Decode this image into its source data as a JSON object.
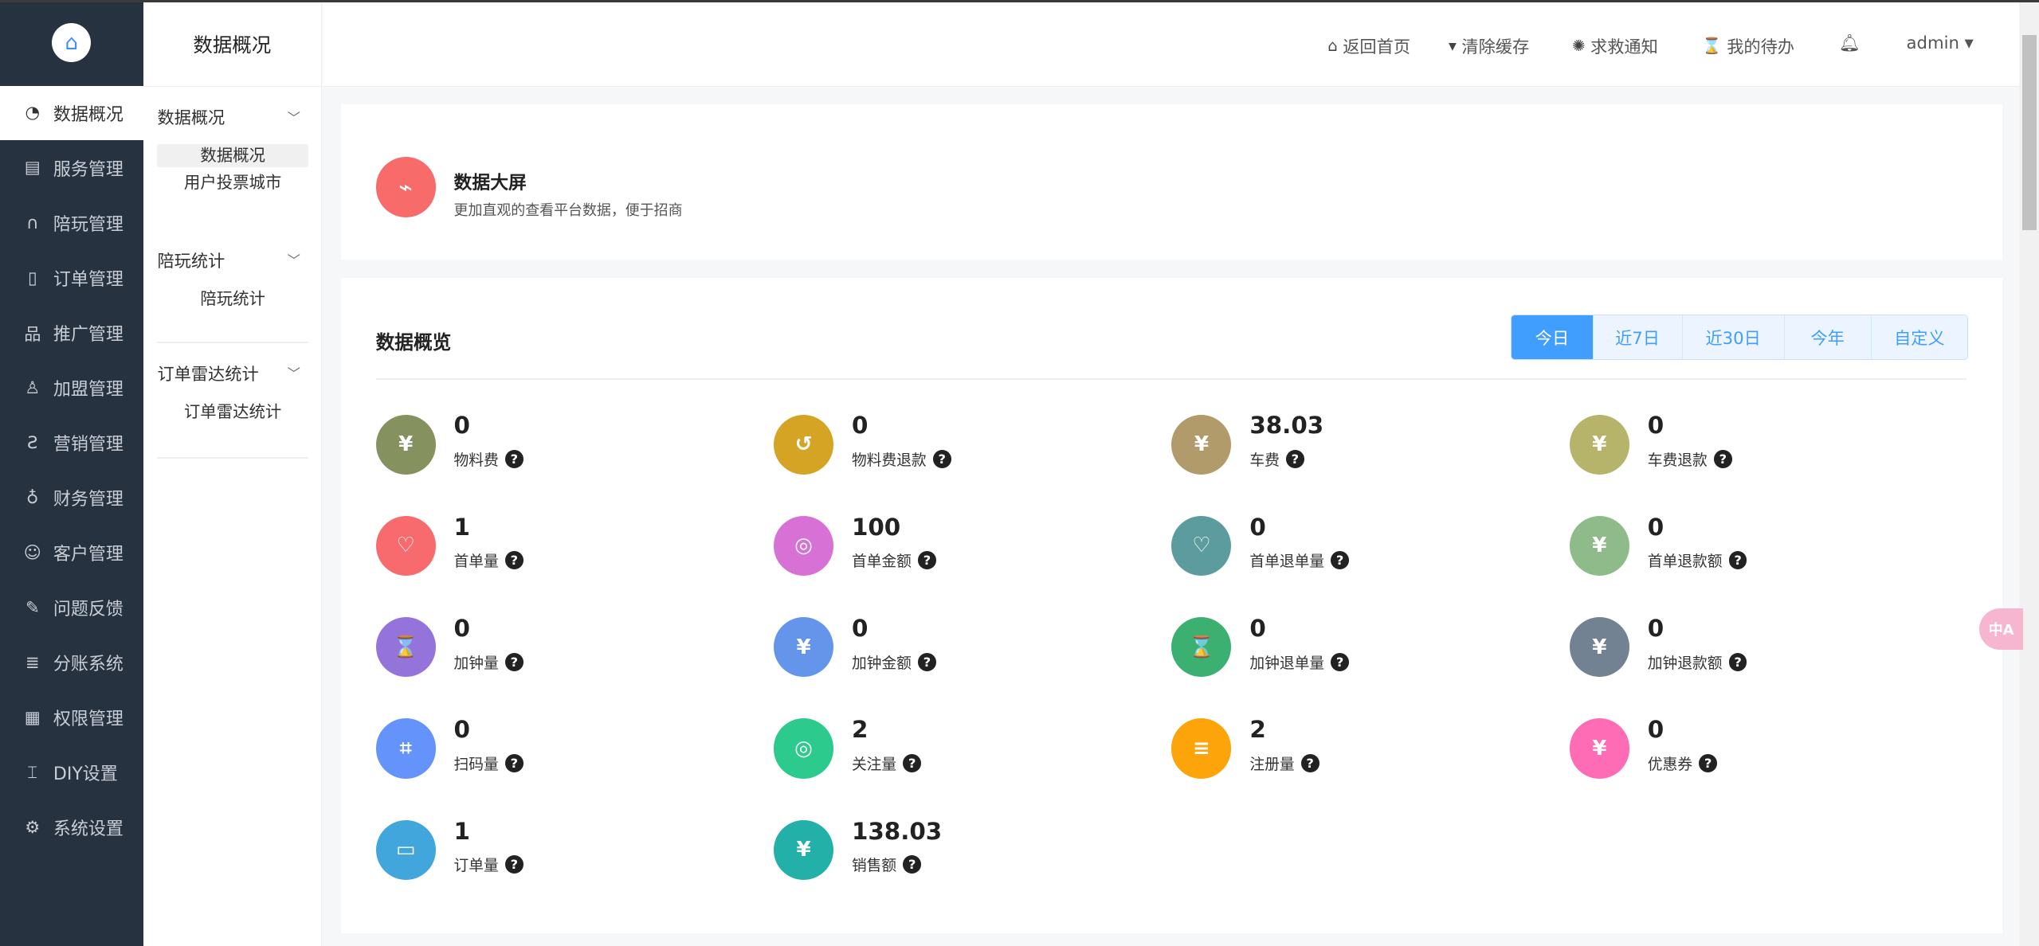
{
  "sidebar": {
    "logo_icon": "home-icon",
    "items": [
      {
        "label": "数据概况",
        "icon": "pie-chart-icon",
        "glyph": "◔",
        "active": true
      },
      {
        "label": "服务管理",
        "icon": "calendar-clock-icon",
        "glyph": "▤"
      },
      {
        "label": "陪玩管理",
        "icon": "headset-icon",
        "glyph": "∩"
      },
      {
        "label": "订单管理",
        "icon": "clipboard-icon",
        "glyph": "▯"
      },
      {
        "label": "推广管理",
        "icon": "hierarchy-icon",
        "glyph": "品"
      },
      {
        "label": "加盟管理",
        "icon": "users-icon",
        "glyph": "♙"
      },
      {
        "label": "营销管理",
        "icon": "marketing-icon",
        "glyph": "Ƨ"
      },
      {
        "label": "财务管理",
        "icon": "money-bag-icon",
        "glyph": "♁"
      },
      {
        "label": "客户管理",
        "icon": "customer-icon",
        "glyph": "☺"
      },
      {
        "label": "问题反馈",
        "icon": "feedback-icon",
        "glyph": "✎"
      },
      {
        "label": "分账系统",
        "icon": "ledger-icon",
        "glyph": "≣"
      },
      {
        "label": "权限管理",
        "icon": "permission-icon",
        "glyph": "▦"
      },
      {
        "label": "DIY设置",
        "icon": "diy-icon",
        "glyph": "⌶"
      },
      {
        "label": "系统设置",
        "icon": "gear-icon",
        "glyph": "⚙"
      }
    ]
  },
  "subnav": {
    "title": "数据概况",
    "groups": [
      {
        "label": "数据概况",
        "items": [
          "数据概况",
          "用户投票城市"
        ],
        "selected": 0
      },
      {
        "label": "陪玩统计",
        "items": [
          "陪玩统计"
        ]
      },
      {
        "label": "订单雷达统计",
        "items": [
          "订单雷达统计"
        ]
      }
    ]
  },
  "header": {
    "items": [
      {
        "label": "返回首页",
        "icon": "home-icon",
        "glyph": "⌂"
      },
      {
        "label": "清除缓存",
        "icon": "brush-icon",
        "glyph": "▾"
      },
      {
        "label": "求救通知",
        "icon": "alarm-icon",
        "glyph": "✺"
      },
      {
        "label": "我的待办",
        "icon": "hourglass-icon",
        "glyph": "⌛"
      }
    ],
    "bell_icon": "bell-icon",
    "user": "admin"
  },
  "banner": {
    "title": "数据大屏",
    "desc": "更加直观的查看平台数据，便于招商",
    "icon": "monitor-chart-icon"
  },
  "overview": {
    "title": "数据概览",
    "tabs": [
      "今日",
      "近7日",
      "近30日",
      "今年",
      "自定义"
    ],
    "active_tab": 0,
    "stats": [
      {
        "value": "0",
        "label": "物料费",
        "color": "#85925f",
        "icon": "price-tag-icon",
        "glyph": "¥"
      },
      {
        "value": "0",
        "label": "物料费退款",
        "color": "#d6a424",
        "icon": "refund-box-icon",
        "glyph": "↺"
      },
      {
        "value": "38.03",
        "label": "车费",
        "color": "#b29b6a",
        "icon": "car-icon",
        "glyph": "¥"
      },
      {
        "value": "0",
        "label": "车费退款",
        "color": "#b5b46a",
        "icon": "yen-refund-icon",
        "glyph": "¥"
      },
      {
        "value": "1",
        "label": "首单量",
        "color": "#f76b6e",
        "icon": "heart-hand-icon",
        "glyph": "♡"
      },
      {
        "value": "100",
        "label": "首单金额",
        "color": "#d771d6",
        "icon": "money-bag-icon",
        "glyph": "◎"
      },
      {
        "value": "0",
        "label": "首单退单量",
        "color": "#5c9c9e",
        "icon": "heart-hand-icon",
        "glyph": "♡"
      },
      {
        "value": "0",
        "label": "首单退款额",
        "color": "#8fbb8b",
        "icon": "yen-refund-icon",
        "glyph": "¥"
      },
      {
        "value": "0",
        "label": "加钟量",
        "color": "#9473db",
        "icon": "hourglass-icon",
        "glyph": "⌛"
      },
      {
        "value": "0",
        "label": "加钟金额",
        "color": "#6495ea",
        "icon": "wallet-clock-icon",
        "glyph": "¥"
      },
      {
        "value": "0",
        "label": "加钟退单量",
        "color": "#3bb071",
        "icon": "hourglass-icon",
        "glyph": "⌛"
      },
      {
        "value": "0",
        "label": "加钟退款额",
        "color": "#738293",
        "icon": "yen-refund-icon",
        "glyph": "¥"
      },
      {
        "value": "0",
        "label": "扫码量",
        "color": "#6393fb",
        "icon": "scan-icon",
        "glyph": "⌗"
      },
      {
        "value": "2",
        "label": "关注量",
        "color": "#2ccb8d",
        "icon": "target-icon",
        "glyph": "◎"
      },
      {
        "value": "2",
        "label": "注册量",
        "color": "#fca40a",
        "icon": "register-icon",
        "glyph": "≡"
      },
      {
        "value": "0",
        "label": "优惠券",
        "color": "#fe6cb5",
        "icon": "coupon-icon",
        "glyph": "¥"
      },
      {
        "value": "1",
        "label": "订单量",
        "color": "#40a6dc",
        "icon": "order-icon",
        "glyph": "▭"
      },
      {
        "value": "138.03",
        "label": "销售额",
        "color": "#22b0a8",
        "icon": "sales-bag-icon",
        "glyph": "¥"
      }
    ]
  },
  "help_icon": "question-circle-icon",
  "float_button": {
    "icon": "translate-icon"
  }
}
